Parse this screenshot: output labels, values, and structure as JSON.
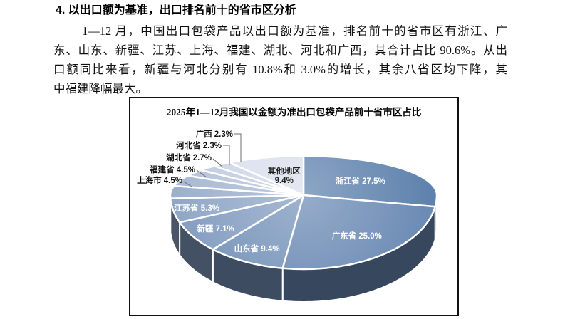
{
  "document": {
    "heading": "4. 以出口额为基准，出口排名前十的省市区分析",
    "paragraph_lines": [
      "1—12 月，中国出口包袋产品以出口额为基准，排名前十的省市区有浙江、广",
      "东、山东、新疆、江苏、上海、福建、湖北、河北和广西，其合计占比 90.6%。从出",
      "口额同比来看，新疆与河北分别有 10.8%和 3.0%的增长，其余八省区均下降，其",
      "中福建降幅最大。"
    ]
  },
  "chart_data": {
    "type": "pie",
    "style": "3d",
    "title": "2025年1—12月我国以金额为准出口包袋产品前十省市区占比",
    "unit": "%",
    "start_angle_deg": 0,
    "direction": "clockwise",
    "legend": "none",
    "rim_color_hint": "#34495E",
    "slices": [
      {
        "label": "浙江省",
        "value": 27.5,
        "text": "浙江省 27.5%",
        "color": "#5C80AC",
        "label_pos": "inside"
      },
      {
        "label": "广东省",
        "value": 25.0,
        "text": "广东省 25.0%",
        "color": "#6989B3",
        "label_pos": "inside"
      },
      {
        "label": "山东省",
        "value": 9.4,
        "text": "山东省 9.4%",
        "color": "#7593B9",
        "label_pos": "inside"
      },
      {
        "label": "新疆",
        "value": 7.1,
        "text": "新疆 7.1%",
        "color": "#829CC0",
        "label_pos": "inside"
      },
      {
        "label": "江苏省",
        "value": 5.3,
        "text": "江苏省 5.3%",
        "color": "#8EA6C6",
        "label_pos": "inside"
      },
      {
        "label": "上海市",
        "value": 4.5,
        "text": "上海市 4.5%",
        "color": "#9BAFCD",
        "label_pos": "outside"
      },
      {
        "label": "福建省",
        "value": 4.5,
        "text": "福建省 4.5%",
        "color": "#A7B8D3",
        "label_pos": "outside"
      },
      {
        "label": "湖北省",
        "value": 2.7,
        "text": "湖北省 2.7%",
        "color": "#B4C2DA",
        "label_pos": "outside"
      },
      {
        "label": "河北省",
        "value": 2.3,
        "text": "河北省 2.3%",
        "color": "#C0CBE0",
        "label_pos": "outside"
      },
      {
        "label": "广西",
        "value": 2.3,
        "text": "广西 2.3%",
        "color": "#CDD5E7",
        "label_pos": "outside"
      },
      {
        "label": "其他地区",
        "value": 9.4,
        "text": "其他地区 9.4%",
        "text_line1": "其他地区",
        "text_line2": "9.4%",
        "color": "#D9DEED",
        "label_pos": "inside-dark"
      }
    ]
  }
}
